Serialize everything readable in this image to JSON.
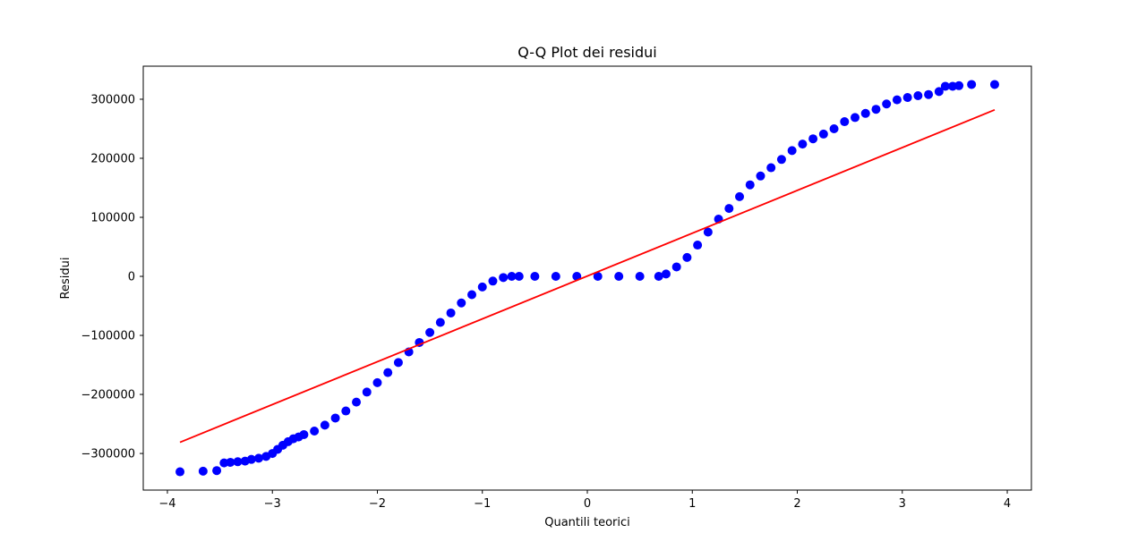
{
  "chart_data": {
    "type": "scatter",
    "title": "Q-Q Plot dei residui",
    "xlabel": "Quantili teorici",
    "ylabel": "Residui",
    "xlim": [
      -4.23,
      4.23
    ],
    "ylim": [
      -362000,
      356000
    ],
    "xticks": [
      -4,
      -3,
      -2,
      -1,
      0,
      1,
      2,
      3,
      4
    ],
    "xtick_labels": [
      "−4",
      "−3",
      "−2",
      "−1",
      "0",
      "1",
      "2",
      "3",
      "4"
    ],
    "yticks": [
      -300000,
      -200000,
      -100000,
      0,
      100000,
      200000,
      300000
    ],
    "ytick_labels": [
      "−300000",
      "−200000",
      "−100000",
      "0",
      "100000",
      "200000",
      "300000"
    ],
    "grid": false,
    "series": [
      {
        "kind": "points",
        "color": "#0000ff",
        "x": [
          -3.88,
          -3.66,
          -3.53,
          -3.46,
          -3.4,
          -3.33,
          -3.26,
          -3.2,
          -3.13,
          -3.06,
          -3.0,
          -2.95,
          -2.9,
          -2.85,
          -2.8,
          -2.75,
          -2.7,
          -2.6,
          -2.5,
          -2.4,
          -2.3,
          -2.2,
          -2.1,
          -2.0,
          -1.9,
          -1.8,
          -1.7,
          -1.6,
          -1.5,
          -1.4,
          -1.3,
          -1.2,
          -1.1,
          -1.0,
          -0.9,
          -0.8,
          -0.72,
          -0.65,
          -0.5,
          -0.3,
          -0.1,
          0.1,
          0.3,
          0.5,
          0.68,
          0.75,
          0.85,
          0.95,
          1.05,
          1.15,
          1.25,
          1.35,
          1.45,
          1.55,
          1.65,
          1.75,
          1.85,
          1.95,
          2.05,
          2.15,
          2.25,
          2.35,
          2.45,
          2.55,
          2.65,
          2.75,
          2.85,
          2.95,
          3.05,
          3.15,
          3.25,
          3.35,
          3.41,
          3.48,
          3.54,
          3.66,
          3.88
        ],
        "y": [
          -331000,
          -330000,
          -329000,
          -316000,
          -315000,
          -314000,
          -313000,
          -310000,
          -308000,
          -305000,
          -300000,
          -293000,
          -286000,
          -280000,
          -275000,
          -272000,
          -268000,
          -262000,
          -252000,
          -240000,
          -228000,
          -213000,
          -196000,
          -180000,
          -163000,
          -146000,
          -128000,
          -112000,
          -95000,
          -78000,
          -62000,
          -45000,
          -31000,
          -18000,
          -8000,
          -2000,
          0,
          0,
          0,
          0,
          0,
          0,
          0,
          0,
          0,
          4000,
          16000,
          32000,
          53000,
          75000,
          97000,
          115000,
          135000,
          155000,
          170000,
          184000,
          198000,
          213000,
          224000,
          233000,
          241000,
          250000,
          262000,
          269000,
          276000,
          283000,
          292000,
          299000,
          303000,
          306000,
          308000,
          313000,
          322000,
          322000,
          323000,
          325000,
          325000
        ]
      },
      {
        "kind": "line",
        "color": "#ff0000",
        "x": [
          -3.88,
          3.88
        ],
        "y": [
          -281000,
          282000
        ]
      }
    ]
  }
}
